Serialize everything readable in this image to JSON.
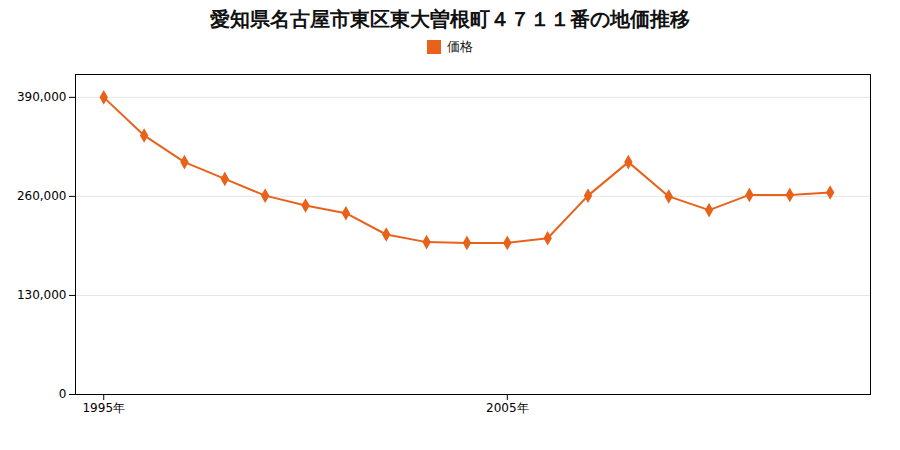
{
  "chart_data": {
    "type": "line",
    "title": "愛知県名古屋市東区東大曽根町４７１１番の地価推移",
    "x": [
      1995,
      1996,
      1997,
      1998,
      1999,
      2000,
      2001,
      2002,
      2003,
      2004,
      2005,
      2006,
      2007,
      2008,
      2009,
      2010,
      2011,
      2012,
      2013
    ],
    "series": [
      {
        "name": "価格",
        "color": "#e8621a",
        "marker": "diamond",
        "values": [
          390000,
          340000,
          305000,
          283000,
          261000,
          248000,
          238000,
          210000,
          200000,
          199000,
          199000,
          205000,
          261000,
          305000,
          260000,
          242000,
          262000,
          262000,
          265000
        ]
      }
    ],
    "xlim": [
      1994.3,
      2014.0
    ],
    "xticks": [
      {
        "value": 1995,
        "label": "1995年"
      },
      {
        "value": 2005,
        "label": "2005年"
      }
    ],
    "ylim": [
      0,
      420000
    ],
    "yticks": [
      0,
      {
        "value": 130000,
        "label": "130,000"
      },
      {
        "value": 260000,
        "label": "260,000"
      },
      {
        "value": 390000,
        "label": "390,000"
      }
    ],
    "grid": "y",
    "legend": "top"
  }
}
